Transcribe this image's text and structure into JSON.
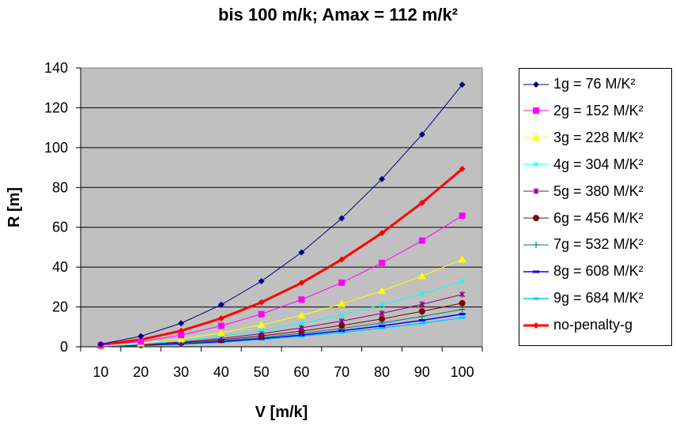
{
  "chart_data": {
    "type": "line",
    "title": "bis 100 m/k; Amax = 112 m/k²",
    "xlabel": "V [m/k]",
    "ylabel": "R [m]",
    "categories": [
      "10",
      "20",
      "30",
      "40",
      "50",
      "60",
      "70",
      "80",
      "90",
      "100"
    ],
    "x": [
      10,
      20,
      30,
      40,
      50,
      60,
      70,
      80,
      90,
      100
    ],
    "ylim": [
      0,
      140
    ],
    "yticks": [
      "0",
      "20",
      "40",
      "60",
      "80",
      "100",
      "120",
      "140"
    ],
    "grid": true,
    "legend_position": "right",
    "series": [
      {
        "name": "1g = 76 M/K²",
        "color": "#000080",
        "marker": "diamond",
        "width": 1,
        "values": [
          1.3,
          5.3,
          11.8,
          21.1,
          32.9,
          47.4,
          64.5,
          84.2,
          106.6,
          131.6
        ]
      },
      {
        "name": "2g = 152 M/K²",
        "color": "#FF00FF",
        "marker": "square",
        "width": 1,
        "values": [
          0.7,
          2.6,
          5.9,
          10.5,
          16.4,
          23.7,
          32.2,
          42.1,
          53.3,
          65.8
        ]
      },
      {
        "name": "3g = 228 M/K²",
        "color": "#FFFF00",
        "marker": "triangle",
        "width": 1,
        "values": [
          0.4,
          1.8,
          3.9,
          7.0,
          11.0,
          15.8,
          21.5,
          28.1,
          35.5,
          43.9
        ]
      },
      {
        "name": "4g = 304 M/K²",
        "color": "#00FFFF",
        "marker": "x",
        "width": 1,
        "values": [
          0.3,
          1.3,
          3.0,
          5.3,
          8.2,
          11.8,
          16.1,
          21.1,
          26.6,
          32.9
        ]
      },
      {
        "name": "5g = 380 M/K²",
        "color": "#800080",
        "marker": "star",
        "width": 1,
        "values": [
          0.3,
          1.1,
          2.4,
          4.2,
          6.6,
          9.5,
          12.9,
          16.8,
          21.3,
          26.3
        ]
      },
      {
        "name": "6g = 456 M/K²",
        "color": "#800000",
        "marker": "circle",
        "width": 1,
        "values": [
          0.2,
          0.9,
          2.0,
          3.5,
          5.5,
          7.9,
          10.7,
          14.0,
          17.8,
          21.9
        ]
      },
      {
        "name": "7g = 532 M/K²",
        "color": "#008080",
        "marker": "plus",
        "width": 1,
        "values": [
          0.2,
          0.8,
          1.7,
          3.0,
          4.7,
          6.8,
          9.2,
          12.0,
          15.2,
          18.8
        ]
      },
      {
        "name": "8g = 608 M/K²",
        "color": "#0000FF",
        "marker": "dash",
        "width": 1.5,
        "values": [
          0.2,
          0.7,
          1.5,
          2.6,
          4.1,
          5.9,
          8.1,
          10.5,
          13.3,
          16.4
        ]
      },
      {
        "name": "9g = 684 M/K²",
        "color": "#00CCFF",
        "marker": "dash",
        "width": 1.5,
        "values": [
          0.1,
          0.6,
          1.3,
          2.3,
          3.7,
          5.3,
          7.2,
          9.4,
          11.8,
          14.6
        ]
      },
      {
        "name": "no-penalty-g",
        "color": "#FF0000",
        "marker": "diamond",
        "width": 3,
        "values": [
          0.9,
          3.6,
          8.0,
          14.3,
          22.3,
          32.1,
          43.8,
          57.1,
          72.3,
          89.3
        ]
      }
    ]
  }
}
